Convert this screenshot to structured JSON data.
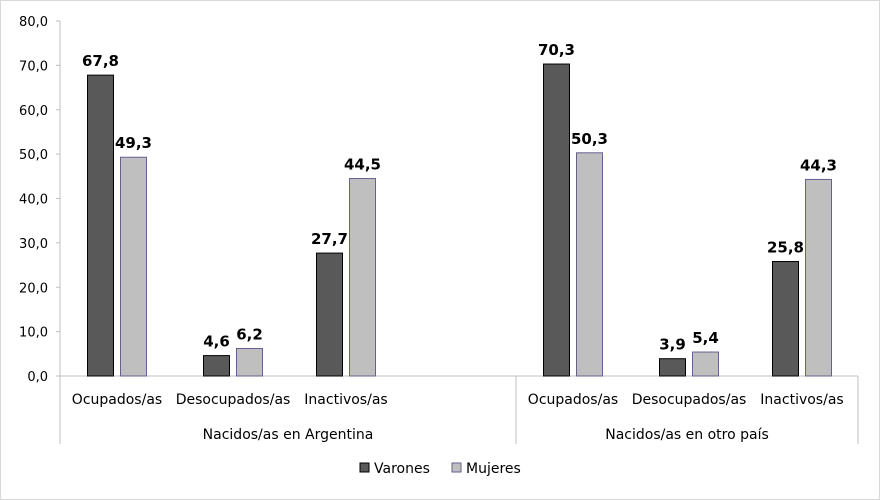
{
  "chart_data": {
    "type": "bar",
    "groups": [
      {
        "label": "Nacidos/as en Argentina",
        "categories": [
          "Ocupados/as",
          "Desocupados/as",
          "Inactivos/as"
        ]
      },
      {
        "label": "Nacidos/as en otro país",
        "categories": [
          "Ocupados/as",
          "Desocupados/as",
          "Inactivos/as"
        ]
      }
    ],
    "series": [
      {
        "name": "Varones",
        "color": "#595959",
        "values": [
          67.8,
          4.6,
          27.7,
          70.3,
          3.9,
          25.8
        ],
        "labels": [
          "67,8",
          "4,6",
          "27,7",
          "70,3",
          "3,9",
          "25,8"
        ]
      },
      {
        "name": "Mujeres",
        "color": "#bfbfbf",
        "values": [
          49.3,
          6.2,
          44.5,
          50.3,
          5.4,
          44.3
        ],
        "labels": [
          "49,3",
          "6,2",
          "44,5",
          "50,3",
          "5,4",
          "44,3"
        ]
      }
    ],
    "yticks": [
      "0,0",
      "10,0",
      "20,0",
      "30,0",
      "40,0",
      "50,0",
      "60,0",
      "70,0",
      "80,0"
    ],
    "ylim": [
      0,
      80
    ],
    "grid": false,
    "legend": "bottom"
  }
}
